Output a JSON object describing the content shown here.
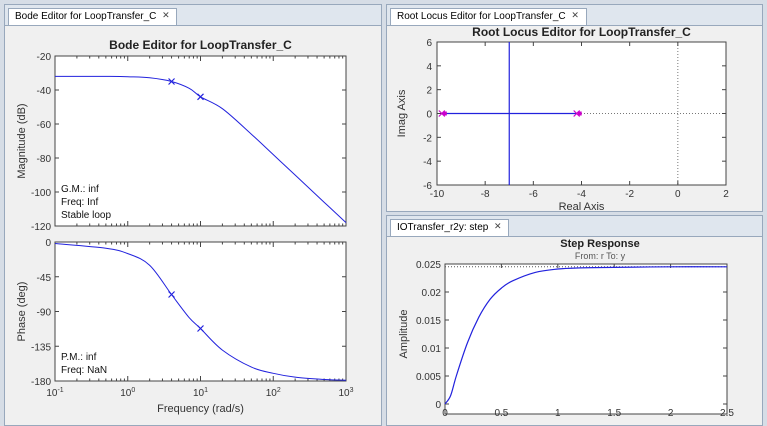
{
  "bode": {
    "tab_label": "Bode Editor for LoopTransfer_C",
    "title": "Bode Editor for LoopTransfer_C",
    "magnitude_ylabel": "Magnitude (dB)",
    "phase_ylabel": "Phase (deg)",
    "xlabel": "Frequency (rad/s)",
    "mag_yticks": [
      "-20",
      "-40",
      "-60",
      "-80",
      "-100",
      "-120"
    ],
    "phase_yticks": [
      "0",
      "-45",
      "-90",
      "-135",
      "-180"
    ],
    "xtick_base": [
      "10",
      "10",
      "10",
      "10",
      "10"
    ],
    "xtick_exp": [
      "-1",
      "0",
      "1",
      "2",
      "3"
    ],
    "gm_label": "G.M.: inf",
    "gm_freq": "Freq: Inf",
    "stability": "Stable loop",
    "pm_label": "P.M.: inf",
    "pm_freq": "Freq: NaN",
    "line_color": "#2222dd",
    "marker_color": "#2222dd"
  },
  "rlocus": {
    "tab_label": "Root Locus Editor for LoopTransfer_C",
    "title": "Root Locus Editor for LoopTransfer_C",
    "xlabel": "Real Axis",
    "ylabel": "Imag Axis",
    "xticks": [
      "-10",
      "-8",
      "-6",
      "-4",
      "-2",
      "0",
      "2"
    ],
    "yticks": [
      "6",
      "4",
      "2",
      "0",
      "-2",
      "-4",
      "-6"
    ],
    "line_color": "#2222dd",
    "pole_color": "#cc00cc"
  },
  "step": {
    "tab_label": "IOTransfer_r2y: step",
    "title": "Step Response",
    "subtitle": "From: r  To: y",
    "ylabel": "Amplitude",
    "yticks": [
      "0.025",
      "0.02",
      "0.015",
      "0.01",
      "0.005",
      "0"
    ],
    "xticks": [
      "0",
      "0.5",
      "1",
      "1.5",
      "2",
      "2.5"
    ],
    "line_color": "#2222dd"
  },
  "chart_data": [
    {
      "type": "line",
      "title": "Bode Editor for LoopTransfer_C",
      "xlabel": "Frequency (rad/s)",
      "ylabel": "Magnitude (dB)",
      "xscale": "log",
      "xlim": [
        0.1,
        1000
      ],
      "ylim": [
        -120,
        -20
      ],
      "series": [
        {
          "x": [
            0.1,
            0.5,
            1,
            2,
            4,
            7,
            10,
            20,
            50,
            100,
            200,
            500,
            1000
          ],
          "values": [
            -32,
            -32,
            -32.2,
            -32.8,
            -35,
            -39,
            -44,
            -51,
            -66,
            -78,
            -90,
            -106,
            -118
          ]
        }
      ],
      "markers": [
        {
          "x": 4,
          "y": -35
        },
        {
          "x": 10,
          "y": -44
        }
      ],
      "annotations": [
        "G.M.: inf",
        "Freq: Inf",
        "Stable loop"
      ],
      "grid": false
    },
    {
      "type": "line",
      "xlabel": "Frequency (rad/s)",
      "ylabel": "Phase (deg)",
      "xscale": "log",
      "xlim": [
        0.1,
        1000
      ],
      "ylim": [
        -180,
        0
      ],
      "series": [
        {
          "x": [
            0.1,
            0.5,
            1,
            2,
            4,
            7,
            10,
            20,
            50,
            100,
            200,
            500,
            1000
          ],
          "values": [
            -2,
            -8,
            -15,
            -30,
            -68,
            -98,
            -112,
            -140,
            -162,
            -170,
            -175,
            -178,
            -179
          ]
        }
      ],
      "markers": [
        {
          "x": 4,
          "y": -68
        },
        {
          "x": 10,
          "y": -112
        }
      ],
      "annotations": [
        "P.M.: inf",
        "Freq: NaN"
      ],
      "grid": false
    },
    {
      "type": "scatter",
      "title": "Root Locus Editor for LoopTransfer_C",
      "xlabel": "Real Axis",
      "ylabel": "Imag Axis",
      "xlim": [
        -10,
        2
      ],
      "ylim": [
        -6,
        6
      ],
      "real_axis_locus": [
        -9.8,
        -4.2
      ],
      "vertical_asymptote_x": -7,
      "poles": [
        {
          "x": -9.8,
          "y": 0
        },
        {
          "x": -4.2,
          "y": 0
        }
      ],
      "grid": false
    },
    {
      "type": "line",
      "title": "Step Response",
      "subtitle": "From: r  To: y",
      "ylabel": "Amplitude",
      "xlim": [
        0,
        2.5
      ],
      "ylim": [
        0,
        0.025
      ],
      "steady_state": 0.0245,
      "series": [
        {
          "x": [
            0,
            0.05,
            0.1,
            0.2,
            0.3,
            0.4,
            0.5,
            0.6,
            0.8,
            1.0,
            1.2,
            1.5,
            2.0,
            2.5
          ],
          "values": [
            0,
            0.0015,
            0.005,
            0.011,
            0.0155,
            0.0187,
            0.0207,
            0.022,
            0.0235,
            0.0241,
            0.0243,
            0.0244,
            0.0245,
            0.0245
          ]
        }
      ],
      "grid": false
    }
  ]
}
